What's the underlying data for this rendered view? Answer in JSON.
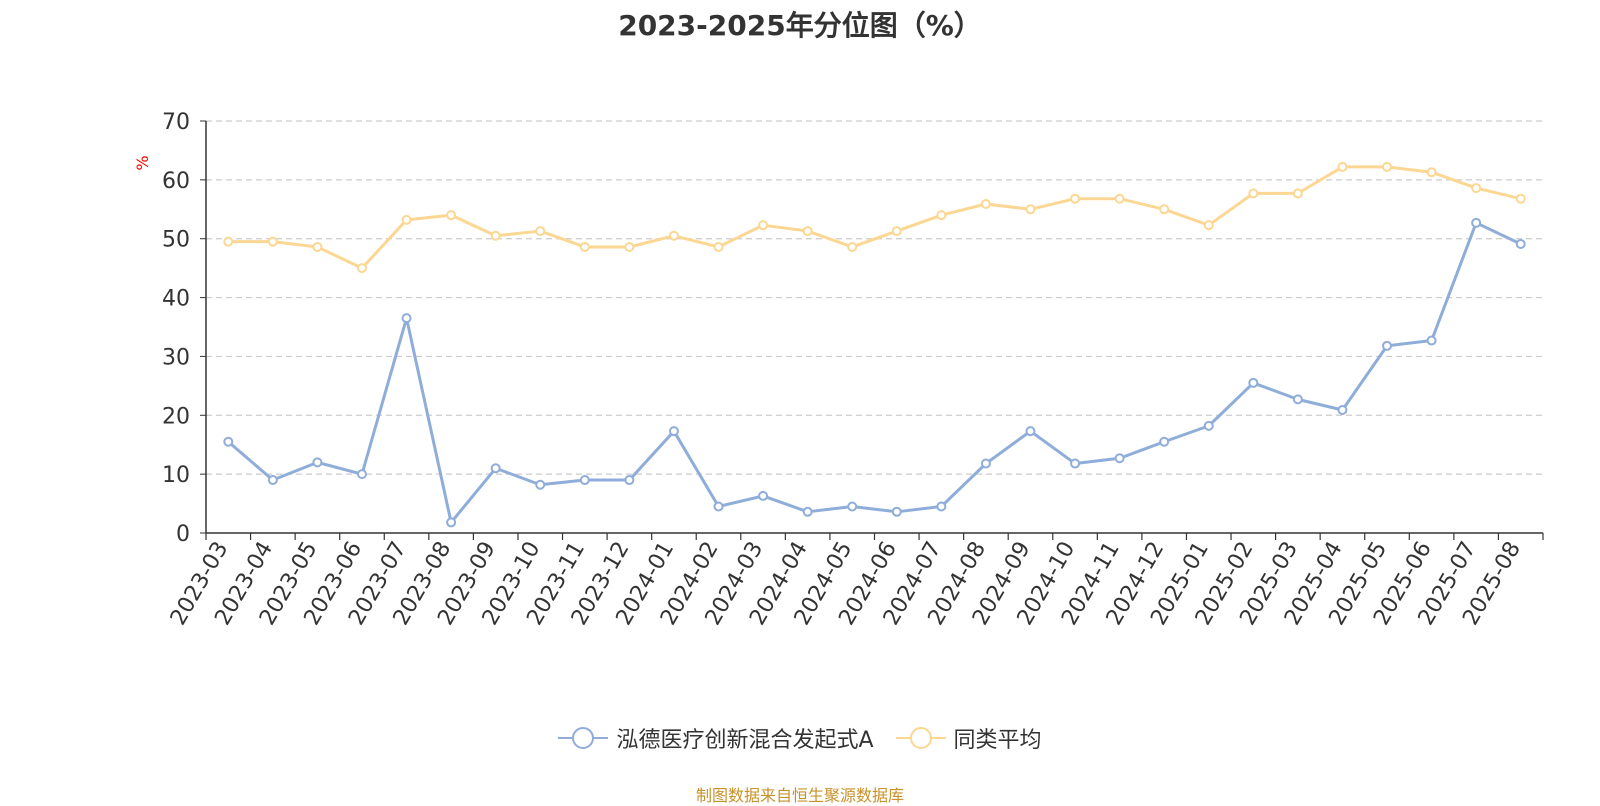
{
  "colors": {
    "series1": "#8fadd9",
    "series2": "#fbd793",
    "grid": "#cccccc",
    "axis": "#333333",
    "unit": "#ff0000",
    "source": "#c8922a"
  },
  "footer": {
    "source": "制图数据来自恒生聚源数据库"
  },
  "chart_data": {
    "type": "line",
    "title": "2023-2025年分位图（%）",
    "ylabel": "%",
    "xlabel": "",
    "ylim": [
      0,
      70
    ],
    "yticks": [
      0,
      10,
      20,
      30,
      40,
      50,
      60,
      70
    ],
    "grid": true,
    "legend_position": "bottom",
    "categories": [
      "2023-03",
      "2023-04",
      "2023-05",
      "2023-06",
      "2023-07",
      "2023-08",
      "2023-09",
      "2023-10",
      "2023-11",
      "2023-12",
      "2024-01",
      "2024-02",
      "2024-03",
      "2024-04",
      "2024-05",
      "2024-06",
      "2024-07",
      "2024-08",
      "2024-09",
      "2024-10",
      "2024-11",
      "2024-12",
      "2025-01",
      "2025-02",
      "2025-03",
      "2025-04",
      "2025-05",
      "2025-06",
      "2025-07",
      "2025-08"
    ],
    "series": [
      {
        "name": "泓德医疗创新混合发起式A",
        "color": "#8fadd9",
        "values": [
          15.5,
          9.0,
          12.0,
          10.0,
          36.5,
          1.8,
          11.0,
          8.2,
          9.0,
          9.0,
          17.3,
          4.5,
          6.3,
          3.6,
          4.5,
          3.6,
          4.5,
          11.8,
          17.3,
          11.8,
          12.7,
          15.5,
          18.2,
          25.5,
          22.7,
          20.9,
          31.8,
          32.7,
          52.7,
          49.1
        ]
      },
      {
        "name": "同类平均",
        "color": "#fbd793",
        "values": [
          49.5,
          49.5,
          48.6,
          45.0,
          53.2,
          54.0,
          50.5,
          51.3,
          48.6,
          48.6,
          50.5,
          48.6,
          52.3,
          51.3,
          48.6,
          51.3,
          54.0,
          55.9,
          55.0,
          56.8,
          56.8,
          55.0,
          52.3,
          57.7,
          57.7,
          62.2,
          62.2,
          61.3,
          58.6,
          56.8
        ]
      }
    ]
  }
}
